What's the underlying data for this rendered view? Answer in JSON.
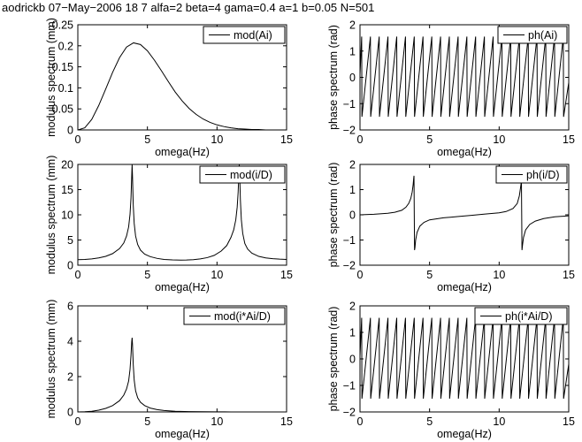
{
  "header": "aodrickb 07−May−2006 18   7 alfa=2 beta=4 gama=0.4 a=1 b=0.05 N=501",
  "chart_data": [
    {
      "type": "line",
      "title": "",
      "legend": "mod(Ai)",
      "legend_position": "top-right",
      "xlabel": "omega(Hz)",
      "ylabel": "modulus spectrum (mm)",
      "xlim": [
        0,
        15
      ],
      "ylim": [
        0,
        0.25
      ],
      "xticks": [
        0,
        5,
        10,
        15
      ],
      "yticks": [
        0,
        0.05,
        0.1,
        0.15,
        0.2,
        0.25
      ],
      "xtick_labels": [
        "0",
        "5",
        "10",
        "15"
      ],
      "ytick_labels": [
        "0",
        "0.05",
        "0.1",
        "0.15",
        "0.2",
        "0.25"
      ],
      "x": [
        0,
        0.5,
        1,
        1.5,
        2,
        2.5,
        3,
        3.5,
        4,
        4.5,
        5,
        5.5,
        6,
        6.5,
        7,
        7.5,
        8,
        8.5,
        9,
        9.5,
        10,
        10.5,
        11,
        11.5,
        12,
        12.5,
        13,
        13.5,
        14,
        14.5,
        15
      ],
      "y": [
        0,
        0.005,
        0.025,
        0.058,
        0.097,
        0.137,
        0.172,
        0.197,
        0.207,
        0.203,
        0.188,
        0.166,
        0.141,
        0.115,
        0.09,
        0.069,
        0.051,
        0.037,
        0.026,
        0.018,
        0.012,
        0.008,
        0.005,
        0.003,
        0.002,
        0.001,
        0.001,
        0,
        0,
        0,
        0
      ]
    },
    {
      "type": "line",
      "title": "",
      "legend": "ph(Ai)",
      "legend_position": "top-right",
      "xlabel": "omega(Hz)",
      "ylabel": "phase spectrum (rad)",
      "xlim": [
        0,
        15
      ],
      "ylim": [
        -2,
        2
      ],
      "xticks": [
        0,
        5,
        10,
        15
      ],
      "yticks": [
        -2,
        -1,
        0,
        1,
        2
      ],
      "xtick_labels": [
        "0",
        "5",
        "10",
        "15"
      ],
      "ytick_labels": [
        "−2",
        "−1",
        "0",
        "1",
        "2"
      ],
      "x": [
        0,
        0.12,
        0.14,
        0.75,
        0.77,
        1.38,
        1.4,
        2.01,
        2.03,
        2.64,
        2.66,
        3.27,
        3.29,
        3.9,
        3.92,
        4.53,
        4.55,
        5.16,
        5.18,
        5.79,
        5.81,
        6.42,
        6.44,
        7.05,
        7.07,
        7.68,
        7.7,
        8.31,
        8.33,
        8.94,
        8.96,
        9.57,
        9.59,
        10.2,
        10.22,
        10.83,
        10.85,
        11.46,
        11.48,
        12.09,
        12.11,
        12.72,
        12.74,
        13.35,
        13.37,
        13.98,
        14,
        14.61,
        14.63,
        15
      ],
      "y": [
        0.1,
        1.55,
        -1.5,
        1.55,
        -1.5,
        1.55,
        -1.5,
        1.55,
        -1.5,
        1.55,
        -1.5,
        1.55,
        -1.5,
        1.55,
        -1.5,
        1.55,
        -1.5,
        1.55,
        -1.5,
        1.55,
        -1.5,
        1.55,
        -1.5,
        1.55,
        -1.5,
        1.55,
        -1.5,
        1.55,
        -1.5,
        1.55,
        -1.5,
        1.55,
        -1.5,
        1.55,
        -1.5,
        1.55,
        -1.5,
        1.55,
        -1.5,
        1.55,
        -1.5,
        1.55,
        -1.5,
        1.55,
        -1.5,
        1.55,
        -1.5,
        1.55,
        -1.5,
        -0.2
      ]
    },
    {
      "type": "line",
      "title": "",
      "legend": "mod(i/D)",
      "legend_position": "top-right",
      "xlabel": "omega(Hz)",
      "ylabel": "modulus spectrum (mm)",
      "xlim": [
        0,
        15
      ],
      "ylim": [
        0,
        20
      ],
      "xticks": [
        0,
        5,
        10,
        15
      ],
      "yticks": [
        0,
        5,
        10,
        15,
        20
      ],
      "xtick_labels": [
        "0",
        "5",
        "10",
        "15"
      ],
      "ytick_labels": [
        "0",
        "5",
        "10",
        "15",
        "20"
      ],
      "x": [
        0,
        0.5,
        1,
        1.5,
        2,
        2.5,
        3,
        3.3,
        3.5,
        3.65,
        3.75,
        3.82,
        3.87,
        3.9,
        3.93,
        3.98,
        4.05,
        4.15,
        4.3,
        4.5,
        4.8,
        5.2,
        5.7,
        6.2,
        6.8,
        7.4,
        7.8,
        8.3,
        8.8,
        9.3,
        9.8,
        10.3,
        10.7,
        11,
        11.2,
        11.35,
        11.45,
        11.52,
        11.57,
        11.6,
        11.63,
        11.68,
        11.75,
        11.85,
        12,
        12.2,
        12.5,
        13,
        13.5,
        14,
        14.5,
        15
      ],
      "y": [
        1.1,
        1.15,
        1.25,
        1.45,
        1.75,
        2.3,
        3.3,
        4.4,
        5.8,
        7.6,
        10.1,
        13.3,
        17.5,
        20,
        17.5,
        12,
        8.3,
        5.8,
        4.1,
        3.0,
        2.2,
        1.7,
        1.35,
        1.15,
        1.05,
        1.02,
        1.03,
        1.1,
        1.25,
        1.5,
        1.95,
        2.8,
        3.9,
        5.5,
        7.0,
        9.0,
        11.5,
        14.5,
        18.0,
        20,
        18.0,
        13.0,
        9.0,
        6.3,
        4.3,
        3.2,
        2.4,
        1.75,
        1.45,
        1.3,
        1.2,
        1.15
      ]
    },
    {
      "type": "line",
      "title": "",
      "legend": "ph(i/D)",
      "legend_position": "top-right",
      "xlabel": "omega(Hz)",
      "ylabel": "phase spectrum (rad)",
      "xlim": [
        0,
        15
      ],
      "ylim": [
        -2,
        2
      ],
      "xticks": [
        0,
        5,
        10,
        15
      ],
      "yticks": [
        -2,
        -1,
        0,
        1,
        2
      ],
      "xtick_labels": [
        "0",
        "5",
        "10",
        "15"
      ],
      "ytick_labels": [
        "−2",
        "−1",
        "0",
        "1",
        "2"
      ],
      "x": [
        0,
        1,
        2,
        2.5,
        3,
        3.3,
        3.5,
        3.65,
        3.75,
        3.82,
        3.86,
        3.88,
        3.9,
        3.92,
        3.95,
        4,
        4.1,
        4.3,
        4.6,
        5,
        6,
        7,
        8,
        9,
        10,
        10.5,
        11,
        11.3,
        11.45,
        11.53,
        11.58,
        11.6,
        11.62,
        11.64,
        11.68,
        11.75,
        11.9,
        12.2,
        12.6,
        13.2,
        14,
        15
      ],
      "y": [
        0.0,
        0.02,
        0.06,
        0.1,
        0.18,
        0.3,
        0.45,
        0.65,
        0.9,
        1.2,
        1.45,
        1.55,
        0.0,
        -1.4,
        -1.3,
        -1.0,
        -0.7,
        -0.45,
        -0.3,
        -0.2,
        -0.12,
        -0.07,
        -0.02,
        0.03,
        0.08,
        0.13,
        0.25,
        0.45,
        0.75,
        1.05,
        1.25,
        1.35,
        0.0,
        -1.4,
        -1.2,
        -0.9,
        -0.6,
        -0.38,
        -0.25,
        -0.15,
        -0.08,
        -0.04
      ]
    },
    {
      "type": "line",
      "title": "",
      "legend": "mod(i*Ai/D)",
      "legend_position": "top-right",
      "xlabel": "omega(Hz)",
      "ylabel": "modulus spectrum (mm)",
      "xlim": [
        0,
        15
      ],
      "ylim": [
        0,
        6
      ],
      "xticks": [
        0,
        5,
        10,
        15
      ],
      "yticks": [
        0,
        2,
        4,
        6
      ],
      "xtick_labels": [
        "0",
        "5",
        "10",
        "15"
      ],
      "ytick_labels": [
        "0",
        "2",
        "4",
        "6"
      ],
      "x": [
        0,
        0.5,
        1,
        1.5,
        2,
        2.5,
        3,
        3.3,
        3.5,
        3.65,
        3.75,
        3.82,
        3.87,
        3.9,
        3.93,
        3.98,
        4.05,
        4.15,
        4.3,
        4.5,
        4.8,
        5.2,
        5.7,
        6.2,
        7,
        8,
        9,
        10,
        11,
        12,
        13,
        14,
        15
      ],
      "y": [
        0,
        0.01,
        0.04,
        0.1,
        0.2,
        0.36,
        0.64,
        0.95,
        1.3,
        1.75,
        2.4,
        3.2,
        3.95,
        4.2,
        3.8,
        2.7,
        1.8,
        1.2,
        0.8,
        0.55,
        0.36,
        0.22,
        0.13,
        0.08,
        0.04,
        0.02,
        0.01,
        0.005,
        0.003,
        0.002,
        0.001,
        0,
        0
      ]
    },
    {
      "type": "line",
      "title": "",
      "legend": "ph(i*Ai/D)",
      "legend_position": "top-right",
      "xlabel": "omega(Hz)",
      "ylabel": "phase spectrum (rad)",
      "xlim": [
        0,
        15
      ],
      "ylim": [
        -2,
        2
      ],
      "xticks": [
        0,
        5,
        10,
        15
      ],
      "yticks": [
        -2,
        -1,
        0,
        1,
        2
      ],
      "xtick_labels": [
        "0",
        "5",
        "10",
        "15"
      ],
      "ytick_labels": [
        "−2",
        "−1",
        "0",
        "1",
        "2"
      ],
      "x": [
        0,
        0.12,
        0.14,
        0.75,
        0.77,
        1.38,
        1.4,
        2.01,
        2.03,
        2.64,
        2.66,
        3.27,
        3.29,
        3.9,
        3.92,
        4.53,
        4.55,
        5.16,
        5.18,
        5.79,
        5.81,
        6.42,
        6.44,
        7.05,
        7.07,
        7.68,
        7.7,
        8.31,
        8.33,
        8.94,
        8.96,
        9.57,
        9.59,
        10.2,
        10.22,
        10.83,
        10.85,
        11.46,
        11.48,
        12.09,
        12.11,
        12.72,
        12.74,
        13.35,
        13.37,
        13.98,
        14,
        14.61,
        14.63,
        15
      ],
      "y": [
        0.1,
        1.55,
        -1.5,
        1.55,
        -1.5,
        1.55,
        -1.5,
        1.55,
        -1.5,
        1.55,
        -1.5,
        1.55,
        -1.5,
        1.55,
        -1.5,
        1.55,
        -1.5,
        1.55,
        -1.5,
        1.55,
        -1.5,
        1.55,
        -1.5,
        1.55,
        -1.5,
        1.55,
        -1.5,
        1.55,
        -1.5,
        1.55,
        -1.5,
        1.55,
        -1.5,
        1.55,
        -1.5,
        1.55,
        -1.5,
        1.55,
        -1.5,
        1.55,
        -1.5,
        1.55,
        -1.5,
        1.55,
        -1.5,
        1.55,
        -1.5,
        1.55,
        -1.5,
        -0.2
      ]
    }
  ]
}
